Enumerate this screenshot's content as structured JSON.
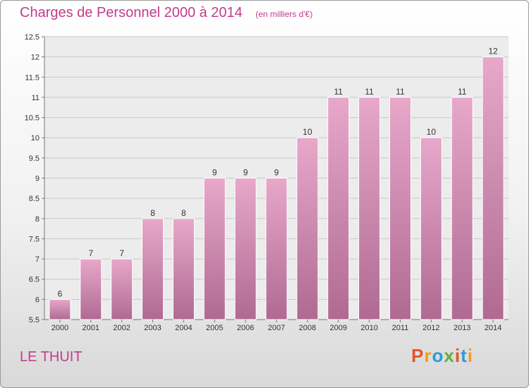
{
  "title": "Charges de Personnel 2000 à 2014",
  "unit": "(en milliers d'€)",
  "commune": "LE THUIT",
  "logo": {
    "text": "Proxiti",
    "colors": [
      "#e8542a",
      "#f39c1f",
      "#2e9bd6",
      "#5fb23a",
      "#e8542a",
      "#2e9bd6",
      "#f39c1f"
    ]
  },
  "colors": {
    "bar_top": "#e7a8ca",
    "bar_bottom": "#b06a92",
    "bar_stroke": "#ffffff",
    "title": "#c23c8c"
  },
  "chart_data": {
    "type": "bar",
    "categories": [
      "2000",
      "2001",
      "2002",
      "2003",
      "2004",
      "2005",
      "2006",
      "2007",
      "2008",
      "2009",
      "2010",
      "2011",
      "2012",
      "2013",
      "2014"
    ],
    "values": [
      6,
      7,
      7,
      8,
      8,
      9,
      9,
      9,
      10,
      11,
      11,
      11,
      10,
      11,
      12
    ],
    "value_labels": [
      "6",
      "7",
      "7",
      "8",
      "8",
      "9",
      "9",
      "9",
      "10",
      "11",
      "11",
      "11",
      "10",
      "11",
      "12"
    ],
    "ylim": [
      5.5,
      12.5
    ],
    "yticks": [
      5.5,
      6,
      6.5,
      7,
      7.5,
      8,
      8.5,
      9,
      9.5,
      10,
      10.5,
      11,
      11.5,
      12,
      12.5
    ],
    "ytick_labels": [
      "5.5",
      "6",
      "6.5",
      "7",
      "7.5",
      "8",
      "8.5",
      "9",
      "9.5",
      "10",
      "10.5",
      "11",
      "11.5",
      "12",
      "12.5"
    ],
    "xlabel": "",
    "ylabel": "",
    "grid": true
  }
}
